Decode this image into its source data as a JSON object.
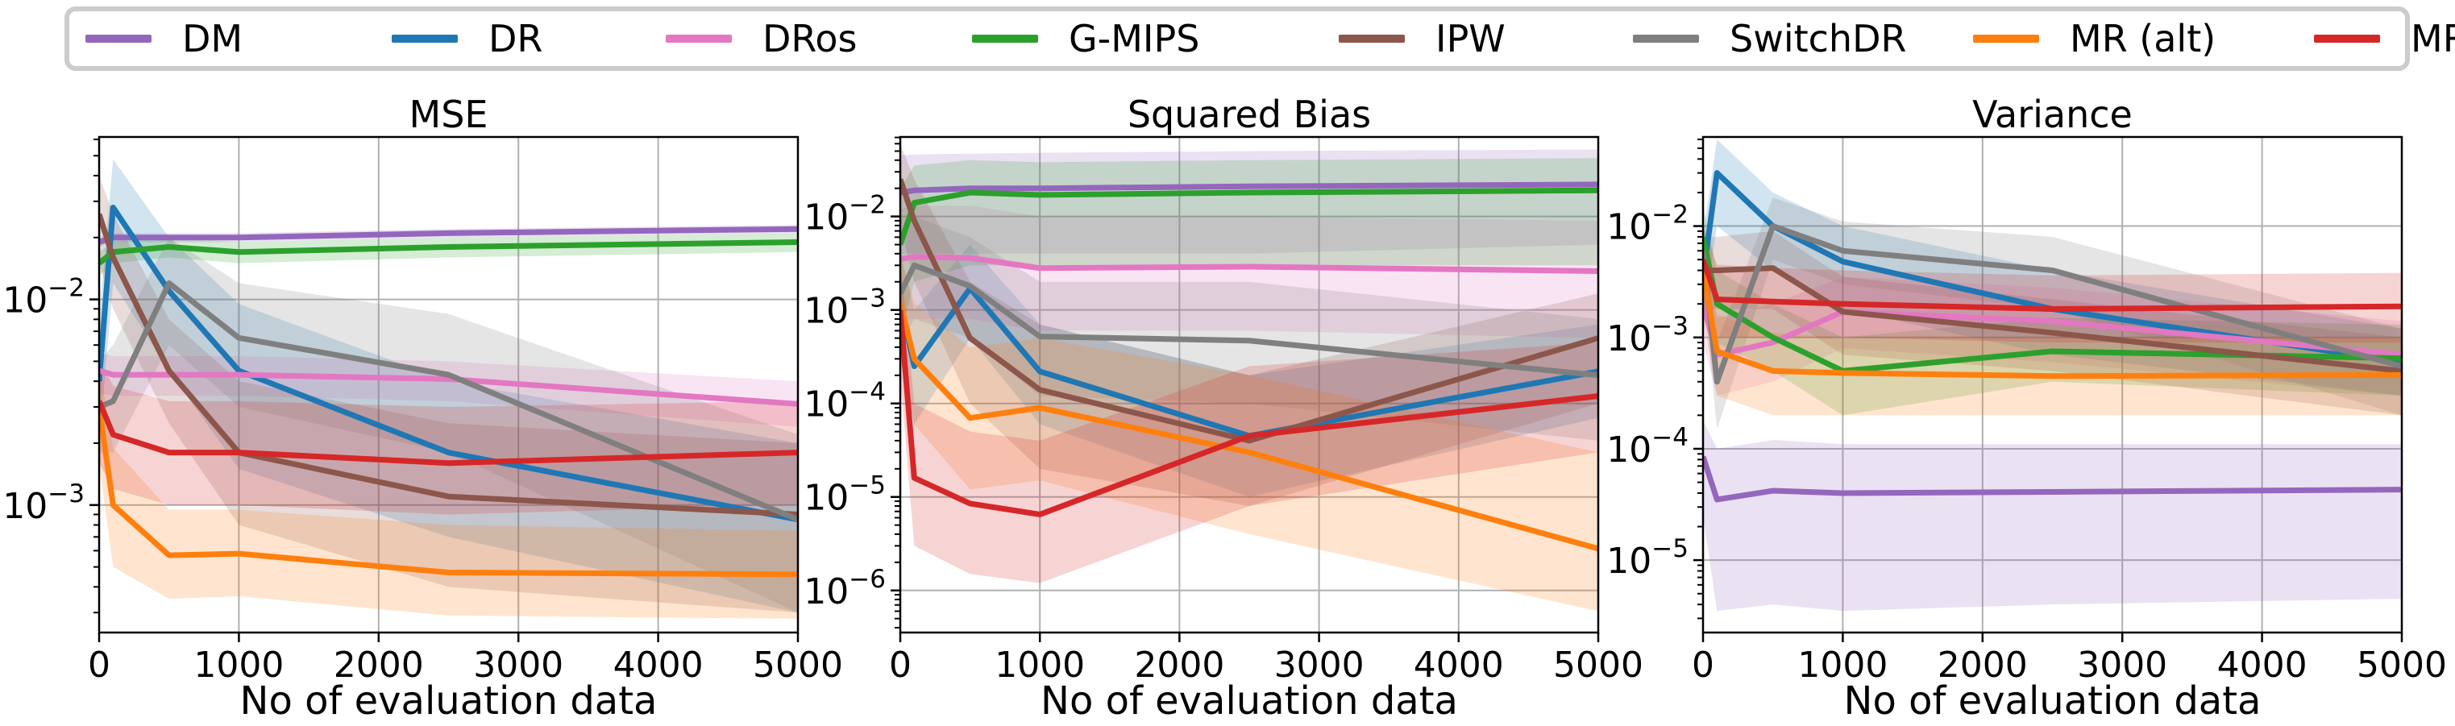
{
  "legend": {
    "entries": [
      {
        "label": "DM",
        "color": "#9467bd"
      },
      {
        "label": "DR",
        "color": "#1f77b4"
      },
      {
        "label": "DRos",
        "color": "#e377c2"
      },
      {
        "label": "G-MIPS",
        "color": "#2ca02c"
      },
      {
        "label": "IPW",
        "color": "#8c564b"
      },
      {
        "label": "SwitchDR",
        "color": "#7f7f7f"
      },
      {
        "label": "MR (alt)",
        "color": "#ff7f0e"
      },
      {
        "label": "MR",
        "color": "#d62728"
      }
    ]
  },
  "chart_data": [
    {
      "type": "line",
      "title": "MSE",
      "xlabel": "No of evaluation data",
      "ylabel": "",
      "yscale": "log",
      "grid": true,
      "xlim": [
        0,
        5000
      ],
      "ylim_log10": [
        -3.62,
        -1.21
      ],
      "xticks": [
        0,
        1000,
        2000,
        3000,
        4000,
        5000
      ],
      "ytick_labels": [
        "10^-3",
        "10^-2"
      ],
      "x": [
        0,
        100,
        500,
        1000,
        2500,
        5000
      ],
      "series": [
        {
          "name": "DM",
          "color": "#9467bd",
          "values": [
            0.019,
            0.02,
            0.02,
            0.02,
            0.021,
            0.022
          ],
          "band": [
            [
              0.018,
              0.02
            ],
            [
              0.019,
              0.021
            ],
            [
              0.019,
              0.021
            ],
            [
              0.019,
              0.021
            ],
            [
              0.02,
              0.022
            ],
            [
              0.021,
              0.023
            ]
          ]
        },
        {
          "name": "DR",
          "color": "#1f77b4",
          "values": [
            0.004,
            0.028,
            0.011,
            0.0045,
            0.0018,
            0.00085
          ],
          "band": [
            [
              0.002,
              0.008
            ],
            [
              0.012,
              0.048
            ],
            [
              0.0045,
              0.02
            ],
            [
              0.0015,
              0.0095
            ],
            [
              0.0007,
              0.004
            ],
            [
              0.0003,
              0.002
            ]
          ]
        },
        {
          "name": "DRos",
          "color": "#e377c2",
          "values": [
            0.0045,
            0.0043,
            0.0043,
            0.0043,
            0.0041,
            0.0031
          ],
          "band": [
            [
              0.0035,
              0.0055
            ],
            [
              0.0034,
              0.0053
            ],
            [
              0.0034,
              0.0053
            ],
            [
              0.0034,
              0.0053
            ],
            [
              0.0032,
              0.005
            ],
            [
              0.0024,
              0.004
            ]
          ]
        },
        {
          "name": "G-MIPS",
          "color": "#2ca02c",
          "values": [
            0.015,
            0.017,
            0.018,
            0.017,
            0.018,
            0.019
          ],
          "band": [
            [
              0.013,
              0.017
            ],
            [
              0.015,
              0.019
            ],
            [
              0.016,
              0.02
            ],
            [
              0.015,
              0.019
            ],
            [
              0.016,
              0.02
            ],
            [
              0.017,
              0.021
            ]
          ]
        },
        {
          "name": "IPW",
          "color": "#8c564b",
          "values": [
            0.026,
            0.016,
            0.0045,
            0.0018,
            0.0011,
            0.0009
          ],
          "band": [
            [
              0.015,
              0.04
            ],
            [
              0.009,
              0.026
            ],
            [
              0.0025,
              0.008
            ],
            [
              0.0008,
              0.004
            ],
            [
              0.0004,
              0.0025
            ],
            [
              0.0003,
              0.002
            ]
          ]
        },
        {
          "name": "SwitchDR",
          "color": "#7f7f7f",
          "values": [
            0.003,
            0.0032,
            0.012,
            0.0065,
            0.0043,
            0.00085
          ],
          "band": [
            [
              0.0018,
              0.005
            ],
            [
              0.0018,
              0.006
            ],
            [
              0.006,
              0.02
            ],
            [
              0.003,
              0.012
            ],
            [
              0.0018,
              0.0085
            ],
            [
              0.0003,
              0.0022
            ]
          ]
        },
        {
          "name": "MR (alt)",
          "color": "#ff7f0e",
          "values": [
            0.003,
            0.001,
            0.00057,
            0.00058,
            0.00047,
            0.00046
          ],
          "band": [
            [
              0.0016,
              0.005
            ],
            [
              0.0005,
              0.0019
            ],
            [
              0.00035,
              0.00095
            ],
            [
              0.00036,
              0.00095
            ],
            [
              0.00029,
              0.0008
            ],
            [
              0.00028,
              0.00075
            ]
          ]
        },
        {
          "name": "MR",
          "color": "#d62728",
          "values": [
            0.0032,
            0.0022,
            0.0018,
            0.0018,
            0.0016,
            0.0018
          ],
          "band": [
            [
              0.0016,
              0.005
            ],
            [
              0.0012,
              0.0038
            ],
            [
              0.001,
              0.0032
            ],
            [
              0.001,
              0.0032
            ],
            [
              0.0009,
              0.003
            ],
            [
              0.001,
              0.0032
            ]
          ]
        }
      ]
    },
    {
      "type": "line",
      "title": "Squared Bias",
      "xlabel": "No of evaluation data",
      "ylabel": "",
      "yscale": "log",
      "grid": true,
      "xlim": [
        0,
        5000
      ],
      "ylim_log10": [
        -6.45,
        -1.15
      ],
      "xticks": [
        0,
        1000,
        2000,
        3000,
        4000,
        5000
      ],
      "ytick_labels": [
        "10^-6",
        "10^-5",
        "10^-4",
        "10^-3",
        "10^-2"
      ],
      "x": [
        0,
        100,
        500,
        1000,
        2500,
        5000
      ],
      "series": [
        {
          "name": "DM",
          "color": "#9467bd",
          "values": [
            0.018,
            0.019,
            0.02,
            0.02,
            0.021,
            0.022
          ],
          "band": [
            [
              0.004,
              0.045
            ],
            [
              0.004,
              0.046
            ],
            [
              0.004,
              0.047
            ],
            [
              0.004,
              0.048
            ],
            [
              0.004,
              0.05
            ],
            [
              0.005,
              0.052
            ]
          ]
        },
        {
          "name": "DR",
          "color": "#1f77b4",
          "values": [
            0.0012,
            0.00025,
            0.0017,
            0.00022,
            4.5e-05,
            0.00022
          ],
          "band": [
            [
              0.0003,
              0.004
            ],
            [
              6e-05,
              0.001
            ],
            [
              0.0005,
              0.005
            ],
            [
              6e-05,
              0.0007
            ],
            [
              1e-05,
              0.0002
            ],
            [
              7e-05,
              0.0007
            ]
          ]
        },
        {
          "name": "DRos",
          "color": "#e377c2",
          "values": [
            0.0035,
            0.0037,
            0.0036,
            0.0028,
            0.0029,
            0.0026
          ],
          "band": [
            [
              0.0008,
              0.012
            ],
            [
              0.0008,
              0.013
            ],
            [
              0.0008,
              0.013
            ],
            [
              0.0006,
              0.01
            ],
            [
              0.0006,
              0.01
            ],
            [
              0.0005,
              0.009
            ]
          ]
        },
        {
          "name": "G-MIPS",
          "color": "#2ca02c",
          "values": [
            0.005,
            0.014,
            0.018,
            0.017,
            0.018,
            0.019
          ],
          "band": [
            [
              0.0005,
              0.02
            ],
            [
              0.002,
              0.035
            ],
            [
              0.003,
              0.04
            ],
            [
              0.003,
              0.038
            ],
            [
              0.003,
              0.04
            ],
            [
              0.003,
              0.042
            ]
          ]
        },
        {
          "name": "IPW",
          "color": "#8c564b",
          "values": [
            0.025,
            0.009,
            0.0005,
            0.00014,
            4e-05,
            0.0005
          ],
          "band": [
            [
              0.008,
              0.06
            ],
            [
              0.002,
              0.025
            ],
            [
              0.0001,
              0.002
            ],
            [
              2e-05,
              0.0007
            ],
            [
              8e-06,
              0.0002
            ],
            [
              0.0001,
              0.0015
            ]
          ]
        },
        {
          "name": "SwitchDR",
          "color": "#7f7f7f",
          "values": [
            0.0015,
            0.003,
            0.0018,
            0.00052,
            0.00047,
            0.0002
          ],
          "band": [
            [
              0.0004,
              0.006
            ],
            [
              0.0008,
              0.01
            ],
            [
              0.0005,
              0.006
            ],
            [
              0.00012,
              0.002
            ],
            [
              0.0001,
              0.002
            ],
            [
              4e-05,
              0.0008
            ]
          ]
        },
        {
          "name": "MR (alt)",
          "color": "#ff7f0e",
          "values": [
            0.0012,
            0.0003,
            7e-05,
            9e-05,
            3e-05,
            2.8e-06
          ],
          "band": [
            [
              0.0003,
              0.004
            ],
            [
              6e-05,
              0.0012
            ],
            [
              1.2e-05,
              0.0004
            ],
            [
              1.5e-05,
              0.0005
            ],
            [
              4e-06,
              0.0002
            ],
            [
              6e-07,
              3e-05
            ]
          ]
        },
        {
          "name": "MR",
          "color": "#d62728",
          "values": [
            0.001,
            1.6e-05,
            8.5e-06,
            6.5e-06,
            4.5e-05,
            0.00012
          ],
          "band": [
            [
              0.0002,
              0.004
            ],
            [
              3e-06,
              0.0001
            ],
            [
              1.5e-06,
              5e-05
            ],
            [
              1.2e-06,
              4e-05
            ],
            [
              8e-06,
              0.00025
            ],
            [
              3e-05,
              0.00045
            ]
          ]
        }
      ]
    },
    {
      "type": "line",
      "title": "Variance",
      "xlabel": "No of evaluation data",
      "ylabel": "",
      "yscale": "log",
      "grid": true,
      "xlim": [
        0,
        5000
      ],
      "ylim_log10": [
        -5.65,
        -1.2
      ],
      "xticks": [
        0,
        1000,
        2000,
        3000,
        4000,
        5000
      ],
      "ytick_labels": [
        "10^-5",
        "10^-4",
        "10^-3",
        "10^-2"
      ],
      "x": [
        0,
        100,
        500,
        1000,
        2500,
        5000
      ],
      "series": [
        {
          "name": "DM",
          "color": "#9467bd",
          "values": [
            8.5e-05,
            3.5e-05,
            4.2e-05,
            4e-05,
            4.1e-05,
            4.3e-05
          ],
          "band": [
            [
              2.5e-05,
              0.00018
            ],
            [
              3.5e-06,
              0.0001
            ],
            [
              4e-06,
              0.00012
            ],
            [
              3.5e-06,
              0.00011
            ],
            [
              4e-06,
              0.00011
            ],
            [
              4.5e-06,
              0.00011
            ]
          ]
        },
        {
          "name": "DR",
          "color": "#1f77b4",
          "values": [
            0.0035,
            0.03,
            0.01,
            0.0048,
            0.0018,
            0.0006
          ],
          "band": [
            [
              0.0015,
              0.008
            ],
            [
              0.01,
              0.06
            ],
            [
              0.004,
              0.02
            ],
            [
              0.0018,
              0.01
            ],
            [
              0.0007,
              0.004
            ],
            [
              0.0003,
              0.0012
            ]
          ]
        },
        {
          "name": "DRos",
          "color": "#e377c2",
          "values": [
            0.002,
            0.0007,
            0.0009,
            0.0017,
            0.0014,
            0.0007
          ],
          "band": [
            [
              0.0009,
              0.004
            ],
            [
              0.0003,
              0.0015
            ],
            [
              0.0004,
              0.002
            ],
            [
              0.0008,
              0.0035
            ],
            [
              0.0006,
              0.0028
            ],
            [
              0.0003,
              0.0014
            ]
          ]
        },
        {
          "name": "G-MIPS",
          "color": "#2ca02c",
          "values": [
            0.008,
            0.002,
            0.001,
            0.0005,
            0.00075,
            0.00065
          ],
          "band": [
            [
              0.004,
              0.015
            ],
            [
              0.0009,
              0.004
            ],
            [
              0.0005,
              0.002
            ],
            [
              0.0002,
              0.001
            ],
            [
              0.0004,
              0.0015
            ],
            [
              0.0003,
              0.0013
            ]
          ]
        },
        {
          "name": "IPW",
          "color": "#8c564b",
          "values": [
            0.004,
            0.004,
            0.0042,
            0.0017,
            0.0011,
            0.0005
          ],
          "band": [
            [
              0.0018,
              0.008
            ],
            [
              0.0018,
              0.008
            ],
            [
              0.0018,
              0.009
            ],
            [
              0.0007,
              0.0035
            ],
            [
              0.0005,
              0.0022
            ],
            [
              0.0002,
              0.001
            ]
          ]
        },
        {
          "name": "SwitchDR",
          "color": "#7f7f7f",
          "values": [
            0.006,
            0.0004,
            0.01,
            0.006,
            0.004,
            0.00055
          ],
          "band": [
            [
              0.003,
              0.012
            ],
            [
              0.00015,
              0.0009
            ],
            [
              0.005,
              0.018
            ],
            [
              0.003,
              0.011
            ],
            [
              0.0018,
              0.008
            ],
            [
              0.0002,
              0.0012
            ]
          ]
        },
        {
          "name": "MR (alt)",
          "color": "#ff7f0e",
          "values": [
            0.004,
            0.00075,
            0.0005,
            0.00048,
            0.00045,
            0.00046
          ],
          "band": [
            [
              0.0015,
              0.008
            ],
            [
              0.0003,
              0.0016
            ],
            [
              0.0002,
              0.0011
            ],
            [
              0.0002,
              0.001
            ],
            [
              0.0002,
              0.001
            ],
            [
              0.0002,
              0.001
            ]
          ]
        },
        {
          "name": "MR",
          "color": "#d62728",
          "values": [
            0.005,
            0.0022,
            0.0021,
            0.002,
            0.0018,
            0.0019
          ],
          "band": [
            [
              0.002,
              0.01
            ],
            [
              0.001,
              0.0045
            ],
            [
              0.001,
              0.0042
            ],
            [
              0.001,
              0.004
            ],
            [
              0.0009,
              0.0036
            ],
            [
              0.0009,
              0.0038
            ]
          ]
        }
      ]
    }
  ]
}
